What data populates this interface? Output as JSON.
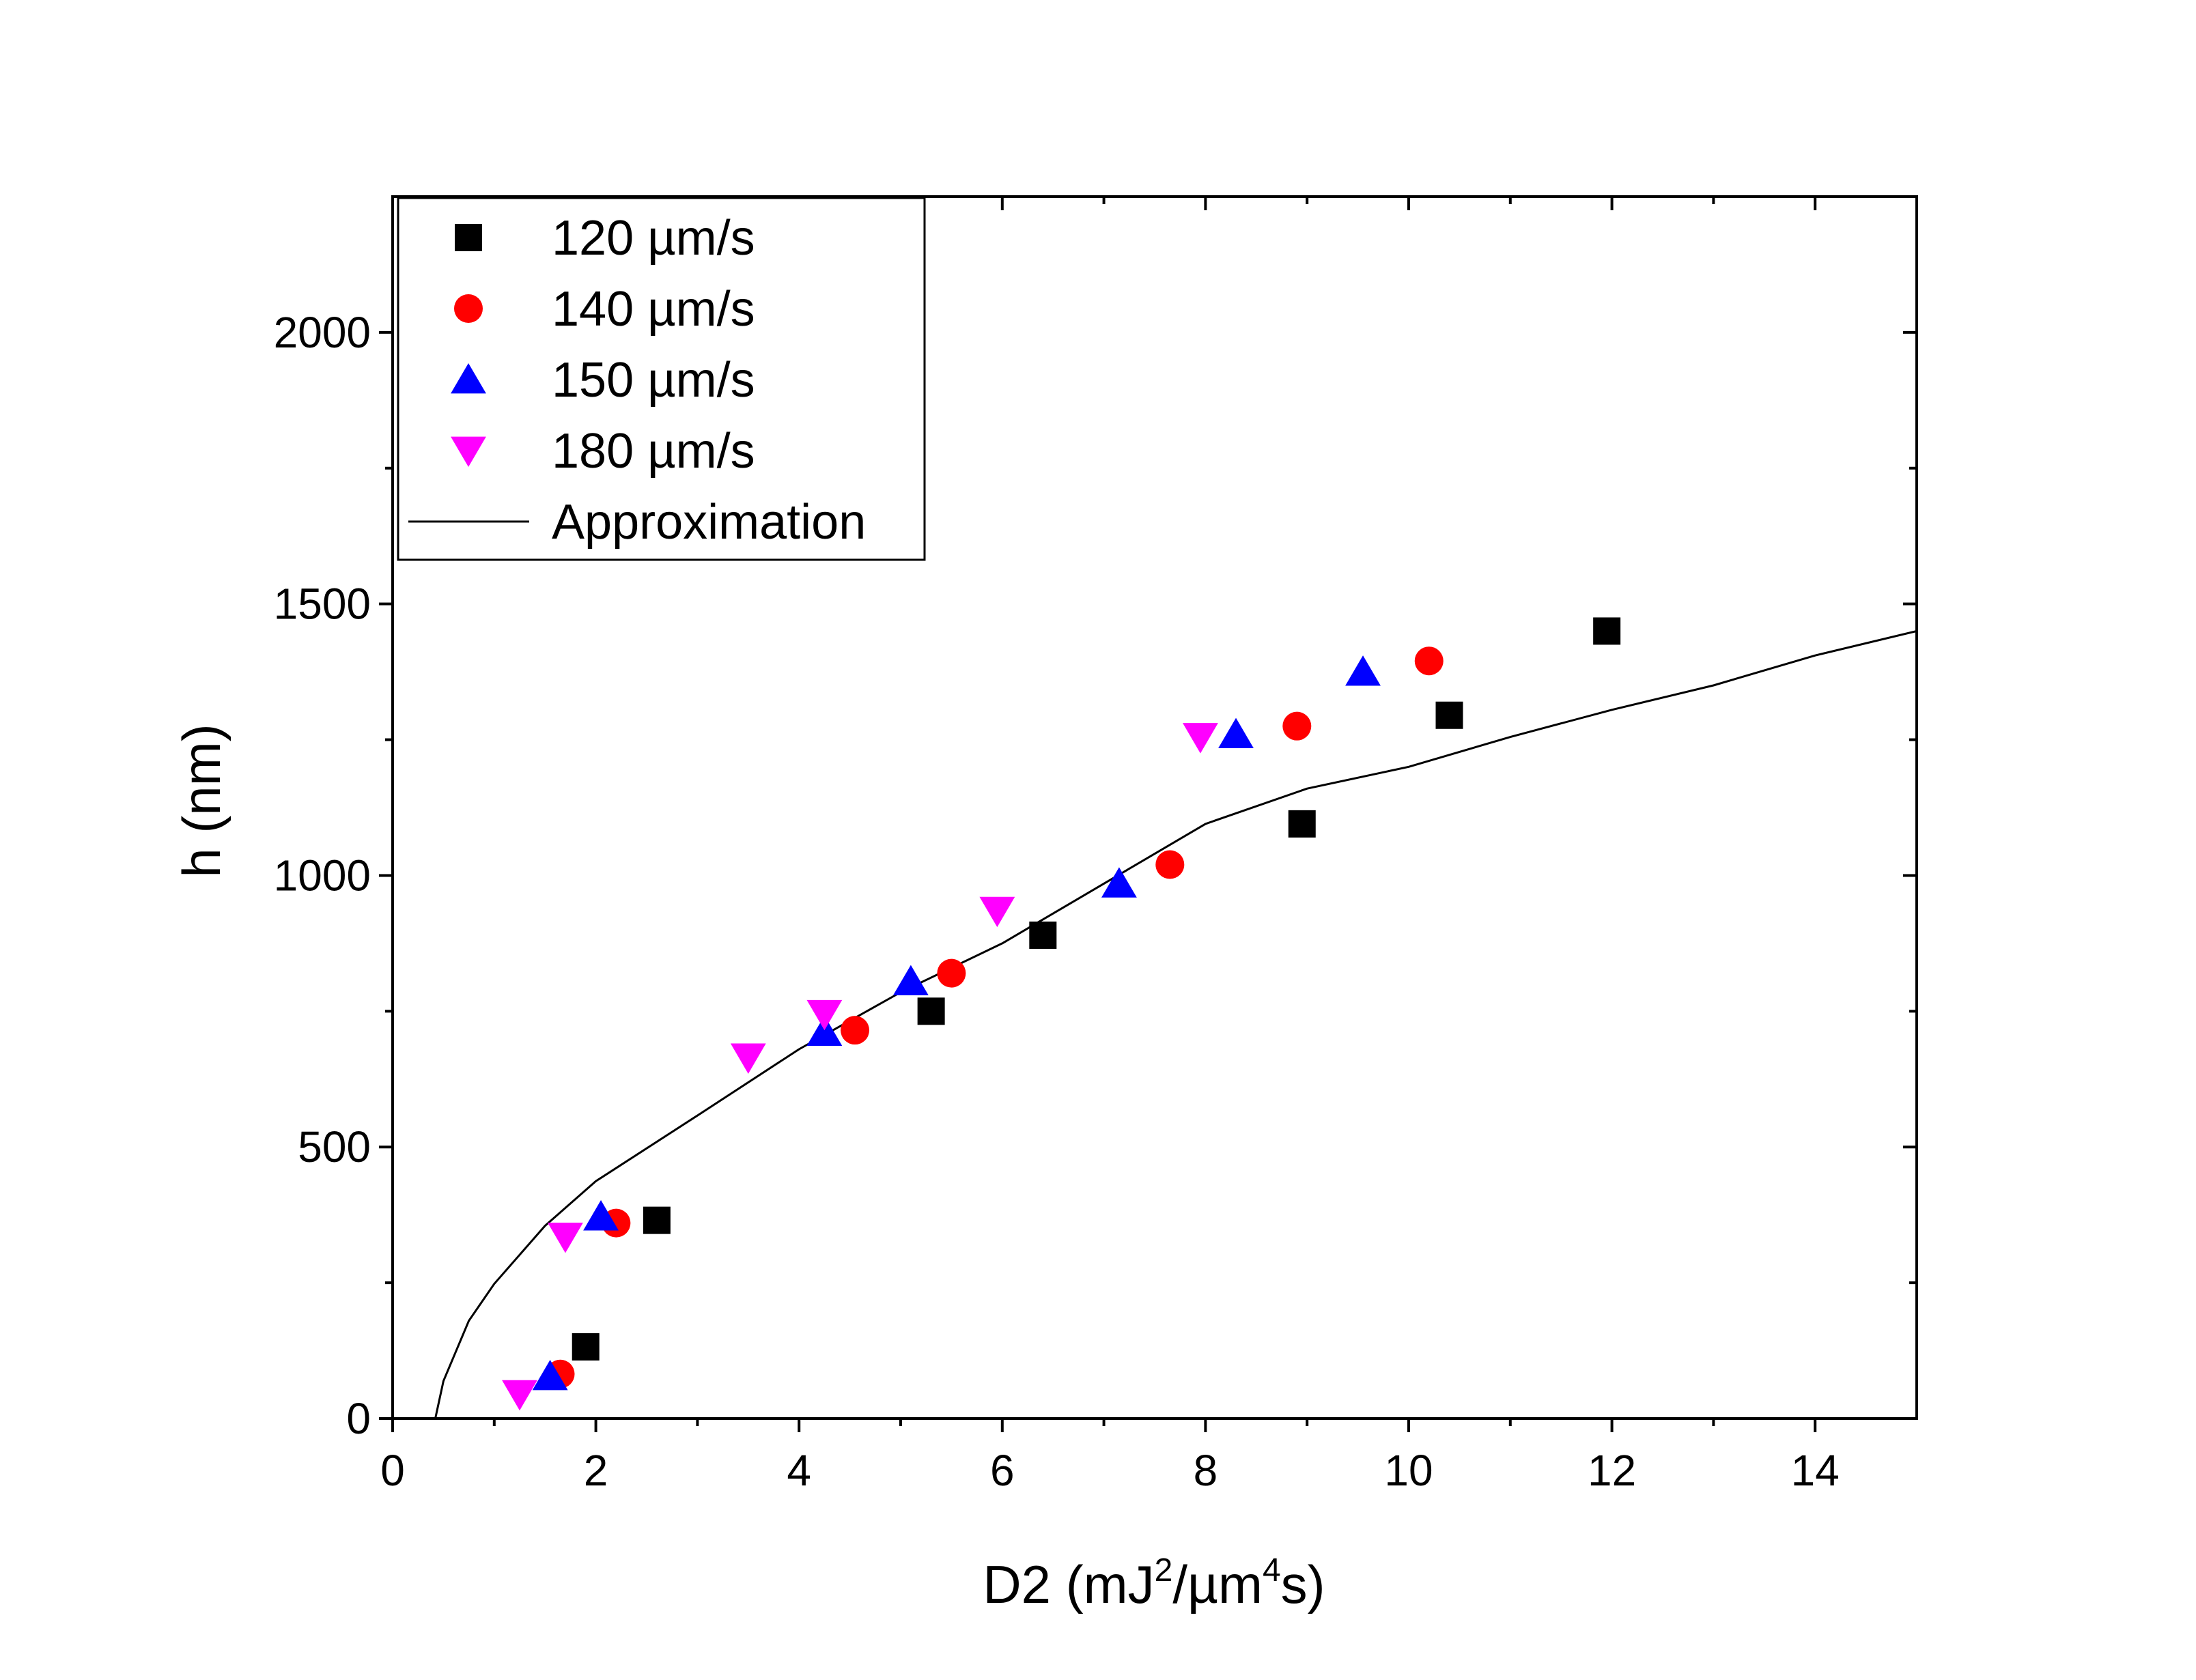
{
  "chart_data": {
    "type": "scatter",
    "title": "",
    "xlabel": {
      "prefix": "D2 (mJ",
      "sup1": "2",
      "middle": "/µm",
      "sup2": "4",
      "suffix": "s)"
    },
    "ylabel": "h (nm)",
    "xlim": [
      0,
      15
    ],
    "ylim": [
      0,
      2250
    ],
    "xticks": [
      0,
      2,
      4,
      6,
      8,
      10,
      12,
      14
    ],
    "xtick_labels": [
      "0",
      "2",
      "4",
      "6",
      "8",
      "10",
      "12",
      "14"
    ],
    "xminor_ticks": [
      1,
      3,
      5,
      7,
      9,
      11,
      13
    ],
    "yticks": [
      0,
      500,
      1000,
      1500,
      2000
    ],
    "ytick_labels": [
      "0",
      "500",
      "1000",
      "1500",
      "2000"
    ],
    "yminor_ticks": [
      250,
      750,
      1250,
      1750
    ],
    "grid": false,
    "legend_position": "top-left",
    "series": [
      {
        "name": "120 µm/s",
        "marker": "square",
        "color": "#000000",
        "points": [
          {
            "x": 1.9,
            "y": 132
          },
          {
            "x": 2.6,
            "y": 365
          },
          {
            "x": 5.3,
            "y": 750
          },
          {
            "x": 6.4,
            "y": 890
          },
          {
            "x": 8.95,
            "y": 1095
          },
          {
            "x": 10.4,
            "y": 1295
          },
          {
            "x": 11.95,
            "y": 1450
          }
        ]
      },
      {
        "name": "140 µm/s",
        "marker": "circle",
        "color": "#ff0000",
        "points": [
          {
            "x": 1.65,
            "y": 82
          },
          {
            "x": 2.2,
            "y": 360
          },
          {
            "x": 4.55,
            "y": 715
          },
          {
            "x": 5.5,
            "y": 820
          },
          {
            "x": 7.65,
            "y": 1020
          },
          {
            "x": 8.9,
            "y": 1275
          },
          {
            "x": 10.2,
            "y": 1395
          }
        ]
      },
      {
        "name": "150 µm/s",
        "marker": "triangle-up",
        "color": "#0000ff",
        "points": [
          {
            "x": 1.55,
            "y": 78
          },
          {
            "x": 2.05,
            "y": 372
          },
          {
            "x": 4.25,
            "y": 712
          },
          {
            "x": 5.1,
            "y": 805
          },
          {
            "x": 7.15,
            "y": 985
          },
          {
            "x": 8.3,
            "y": 1260
          },
          {
            "x": 9.55,
            "y": 1375
          }
        ]
      },
      {
        "name": "180 µm/s",
        "marker": "triangle-down",
        "color": "#ff00ff",
        "points": [
          {
            "x": 1.25,
            "y": 45
          },
          {
            "x": 1.7,
            "y": 335
          },
          {
            "x": 3.5,
            "y": 665
          },
          {
            "x": 4.25,
            "y": 745
          },
          {
            "x": 5.95,
            "y": 935
          },
          {
            "x": 7.95,
            "y": 1255
          }
        ]
      },
      {
        "name": "Approximation",
        "marker": "line",
        "color": "#000000",
        "points": [
          {
            "x": 0.42,
            "y": 0
          },
          {
            "x": 0.5,
            "y": 69
          },
          {
            "x": 0.75,
            "y": 180
          },
          {
            "x": 1.0,
            "y": 248
          },
          {
            "x": 1.5,
            "y": 355
          },
          {
            "x": 2.0,
            "y": 437
          },
          {
            "x": 3.0,
            "y": 558
          },
          {
            "x": 4.0,
            "y": 680
          },
          {
            "x": 5.0,
            "y": 785
          },
          {
            "x": 6.0,
            "y": 875
          },
          {
            "x": 7.0,
            "y": 985
          },
          {
            "x": 8.0,
            "y": 1095
          },
          {
            "x": 9.0,
            "y": 1160
          },
          {
            "x": 10.0,
            "y": 1200
          },
          {
            "x": 11.0,
            "y": 1255
          },
          {
            "x": 12.0,
            "y": 1305
          },
          {
            "x": 13.0,
            "y": 1350
          },
          {
            "x": 14.0,
            "y": 1405
          },
          {
            "x": 15.0,
            "y": 1450
          }
        ]
      }
    ]
  }
}
